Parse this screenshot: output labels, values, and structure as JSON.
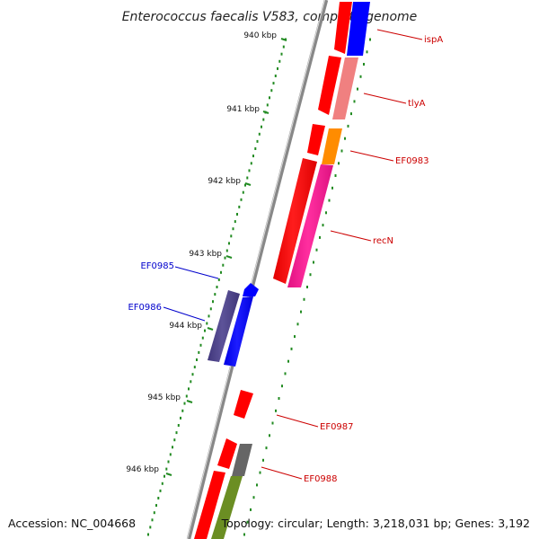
{
  "title": "Enterococcus faecalis V583, complete genome",
  "accession": "Accession: NC_004668",
  "topology": "Topology: circular; Length: 3,218,031 bp; Genes: 3,192",
  "ruler_labels": [
    "940 kbp",
    "941 kbp",
    "942 kbp",
    "943 kbp",
    "944 kbp",
    "945 kbp",
    "946 kbp"
  ],
  "genes": [
    {
      "name": "ispA",
      "strand": "plus",
      "color": "#ff0000"
    },
    {
      "name": "tlyA",
      "strand": "plus",
      "color": "#ff0000"
    },
    {
      "name": "EF0983",
      "strand": "plus",
      "color": "#ff0000"
    },
    {
      "name": "recN",
      "strand": "plus",
      "color": "#ff0000"
    },
    {
      "name": "EF0985",
      "strand": "minus",
      "color": "#0000cc"
    },
    {
      "name": "EF0986",
      "strand": "minus",
      "color": "#0000cc"
    },
    {
      "name": "EF0987",
      "strand": "plus",
      "color": "#ff0000"
    },
    {
      "name": "EF0988",
      "strand": "plus",
      "color": "#ff0000"
    }
  ],
  "colors": {
    "plus_label": "#cc0000",
    "minus_label": "#0000cc",
    "backbone": "#888888",
    "ruler": "#228b22",
    "gene_red": "#ff0000",
    "gene_blue": "#0000ff",
    "cog_blue": "#0000ff",
    "cog_salmon": "#f08080",
    "cog_orange": "#ff8c00",
    "cog_pink": "#ff1493",
    "cog_purple": "#483d8b",
    "cog_gray": "#666666",
    "cog_olive": "#6b8e23"
  }
}
